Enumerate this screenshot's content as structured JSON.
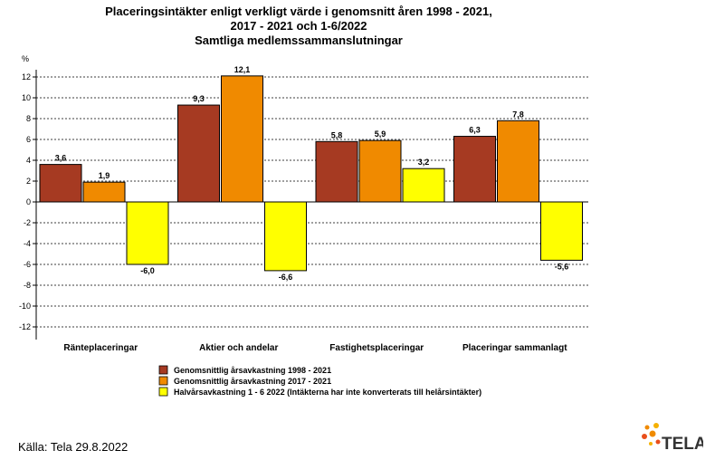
{
  "chart_data": {
    "type": "bar",
    "title_lines": [
      "Placeringsintäkter enligt verkligt värde i genomsnitt åren 1998 - 2021,",
      "2017 - 2021 och 1-6/2022",
      "Samtliga medlemssammanslutningar"
    ],
    "ylabel": "%",
    "ylim": [
      -12,
      12
    ],
    "yticks": [
      12,
      10,
      8,
      6,
      4,
      2,
      0,
      -2,
      -4,
      -6,
      -8,
      -10,
      -12
    ],
    "grid": true,
    "legend_position": "bottom",
    "categories": [
      "Ränteplaceringar",
      "Aktier och andelar",
      "Fastighetsplaceringar",
      "Placeringar sammanlagt"
    ],
    "series": [
      {
        "name": "Genomsnittlig årsavkastning 1998 - 2021",
        "color": "#A63A22",
        "values": [
          3.6,
          9.3,
          5.8,
          6.3
        ],
        "labels": [
          "3,6",
          "9,3",
          "5,8",
          "6,3"
        ]
      },
      {
        "name": "Genomsnittlig årsavkastning 2017 - 2021",
        "color": "#F08A00",
        "values": [
          1.9,
          12.1,
          5.9,
          7.8
        ],
        "labels": [
          "1,9",
          "12,1",
          "5,9",
          "7,8"
        ]
      },
      {
        "name": "Halvårsavkastning 1 - 6 2022 (Intäkterna har inte konverterats till helårsintäkter)",
        "color": "#FFFF00",
        "values": [
          -6.0,
          -6.6,
          3.2,
          -5.6
        ],
        "labels": [
          "-6,0",
          "-6,6",
          "3,2",
          "-5,6"
        ]
      }
    ]
  },
  "footer": {
    "source": "Källa: Tela 29.8.2022",
    "logo_text": "TELA"
  }
}
